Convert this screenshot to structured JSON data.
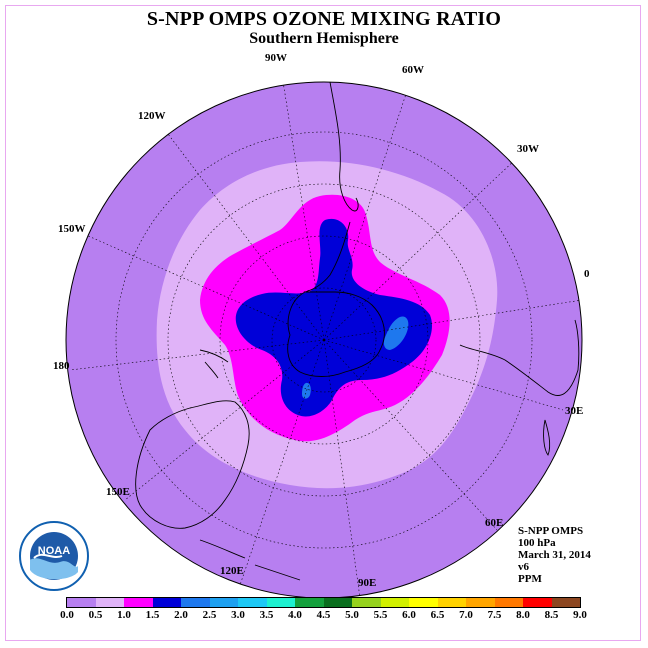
{
  "title": "S-NPP OMPS OZONE MIXING RATIO",
  "subtitle": "Southern Hemisphere",
  "longitude_labels": {
    "w90": "90W",
    "w60": "60W",
    "w30": "30W",
    "e0": "0",
    "w120": "120W",
    "w150": "150W",
    "e180": "180",
    "e150": "150E",
    "e120": "120E",
    "e90": "90E",
    "e60": "60E",
    "e30": "30E"
  },
  "info": {
    "instrument": "S-NPP OMPS",
    "level": "100 hPa",
    "date": "March 31, 2014",
    "version": "v6",
    "units": "PPM"
  },
  "logo": {
    "text": "NOAA",
    "icon": "noaa-logo"
  },
  "colorbar": {
    "ticks": [
      "0.0",
      "0.5",
      "1.0",
      "1.5",
      "2.0",
      "2.5",
      "3.0",
      "3.5",
      "4.0",
      "4.5",
      "5.0",
      "5.5",
      "6.0",
      "6.5",
      "7.0",
      "7.5",
      "8.0",
      "8.5",
      "9.0"
    ],
    "colors": [
      "#b77ff0",
      "#e0b3f8",
      "#ff00ff",
      "#0000d8",
      "#1e78ee",
      "#1ea0f0",
      "#1ec8f5",
      "#1ef0d0",
      "#14a03c",
      "#0a6e1e",
      "#96d21e",
      "#d2f000",
      "#ffff00",
      "#ffd200",
      "#ffa500",
      "#ff7800",
      "#ff0000",
      "#8c4620"
    ]
  },
  "chart_data": {
    "type": "heatmap",
    "title": "S-NPP OMPS OZONE MIXING RATIO",
    "subtitle": "Southern Hemisphere",
    "projection": "polar stereographic, south pole",
    "units": "PPM",
    "pressure_level": "100 hPa",
    "date": "March 31, 2014",
    "contour_levels": [
      0.0,
      0.5,
      1.0,
      1.5,
      2.0,
      2.5,
      3.0,
      3.5,
      4.0,
      4.5,
      5.0,
      5.5,
      6.0,
      6.5,
      7.0,
      7.5,
      8.0,
      8.5,
      9.0
    ],
    "regions": [
      {
        "range": "0.0-0.5",
        "location": "outer hemisphere / tropics"
      },
      {
        "range": "0.5-1.0",
        "location": "mid-latitude ring"
      },
      {
        "range": "1.0-1.5",
        "location": "polar ring"
      },
      {
        "range": "1.5-2.0",
        "location": "polar vortex core"
      },
      {
        "range": "2.0-2.5",
        "location": "small patches near 0 and 150E"
      }
    ]
  }
}
